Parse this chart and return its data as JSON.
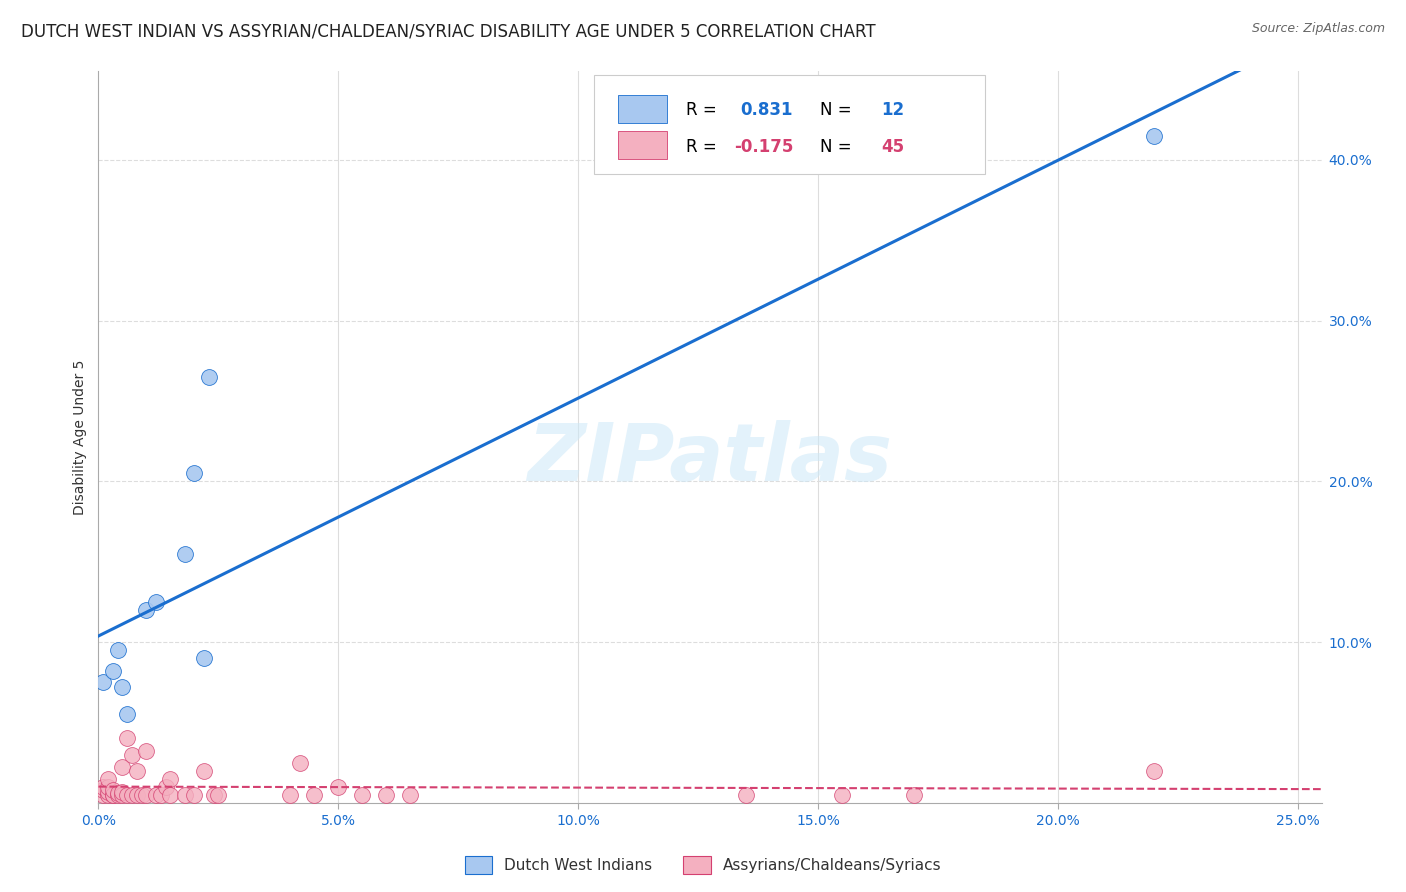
{
  "title": "DUTCH WEST INDIAN VS ASSYRIAN/CHALDEAN/SYRIAC DISABILITY AGE UNDER 5 CORRELATION CHART",
  "source": "Source: ZipAtlas.com",
  "ylabel": "Disability Age Under 5",
  "right_yticks": [
    "40.0%",
    "30.0%",
    "20.0%",
    "10.0%"
  ],
  "right_ytick_vals": [
    0.4,
    0.3,
    0.2,
    0.1
  ],
  "xtick_vals": [
    0.0,
    0.05,
    0.1,
    0.15,
    0.2,
    0.25
  ],
  "xtick_labels": [
    "0.0%",
    "5.0%",
    "10.0%",
    "15.0%",
    "20.0%",
    "25.0%"
  ],
  "xlim": [
    0.0,
    0.255
  ],
  "ylim": [
    0.0,
    0.455
  ],
  "watermark": "ZIPatlas",
  "legend_labels_bottom": [
    "Dutch West Indians",
    "Assyrians/Chaldeans/Syriacs"
  ],
  "blue_points_x": [
    0.001,
    0.003,
    0.004,
    0.005,
    0.006,
    0.01,
    0.012,
    0.018,
    0.02,
    0.022,
    0.023,
    0.22
  ],
  "blue_points_y": [
    0.075,
    0.082,
    0.095,
    0.072,
    0.055,
    0.12,
    0.125,
    0.155,
    0.205,
    0.09,
    0.265,
    0.415
  ],
  "pink_points_x": [
    0.001,
    0.001,
    0.001,
    0.002,
    0.002,
    0.002,
    0.002,
    0.003,
    0.003,
    0.003,
    0.004,
    0.004,
    0.005,
    0.005,
    0.005,
    0.006,
    0.006,
    0.007,
    0.007,
    0.008,
    0.008,
    0.009,
    0.01,
    0.01,
    0.012,
    0.013,
    0.014,
    0.015,
    0.015,
    0.018,
    0.02,
    0.022,
    0.024,
    0.025,
    0.04,
    0.042,
    0.045,
    0.05,
    0.055,
    0.06,
    0.065,
    0.135,
    0.155,
    0.17,
    0.22
  ],
  "pink_points_y": [
    0.005,
    0.008,
    0.01,
    0.005,
    0.007,
    0.01,
    0.015,
    0.005,
    0.005,
    0.008,
    0.005,
    0.006,
    0.005,
    0.007,
    0.022,
    0.005,
    0.04,
    0.005,
    0.03,
    0.005,
    0.02,
    0.005,
    0.005,
    0.032,
    0.005,
    0.005,
    0.01,
    0.015,
    0.005,
    0.005,
    0.005,
    0.02,
    0.005,
    0.005,
    0.005,
    0.025,
    0.005,
    0.01,
    0.005,
    0.005,
    0.005,
    0.005,
    0.005,
    0.005,
    0.02
  ],
  "blue_line_intercept": 0.065,
  "blue_line_slope": 1.6,
  "pink_line_intercept": 0.03,
  "pink_line_slope": -0.04,
  "blue_line_color": "#1a6ecf",
  "pink_line_color": "#d44070",
  "blue_scatter_color": "#a8c8f0",
  "pink_scatter_color": "#f4b0c0",
  "background_color": "#ffffff",
  "grid_color": "#dddddd",
  "title_fontsize": 12,
  "axis_label_fontsize": 10,
  "tick_fontsize": 10,
  "legend_fontsize": 12
}
